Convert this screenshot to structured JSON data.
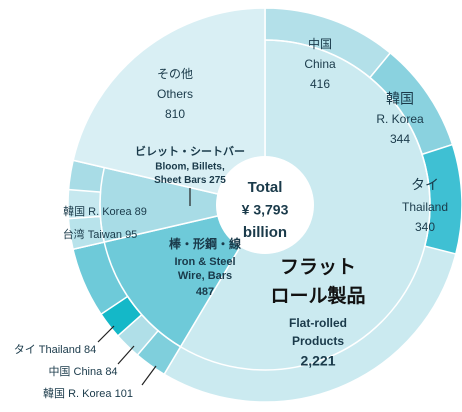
{
  "chart_data": {
    "type": "sunburst",
    "total_title": "Total",
    "total": {
      "value": 3793,
      "label": "¥ 3,793"
    },
    "unit": "billion",
    "segments": [
      {
        "name_ja": [
          "フラット",
          "ロール製品"
        ],
        "name_en": [
          "Flat-rolled",
          "Products"
        ],
        "value": 2221,
        "value_label": "2,221",
        "color": "#cbeaf0",
        "children": [
          {
            "name_ja": "中国",
            "name_en": "China",
            "value": 416,
            "color": "#b3e0e9"
          },
          {
            "name_ja": "韓国",
            "name_en": "R. Korea",
            "value": 344,
            "color": "#8ad2df"
          },
          {
            "name_ja": "タイ",
            "name_en": "Thailand",
            "value": 340,
            "color": "#3fc0d3"
          }
        ]
      },
      {
        "name_ja": "棒・形鋼・線",
        "name_en": [
          "Iron & Steel",
          "Wire, Bars"
        ],
        "value": 487,
        "color": "#6ecad9",
        "children": [
          {
            "name_ja": "韓国",
            "name_en": "R. Korea",
            "value": 101,
            "color": "#7fcfdc"
          },
          {
            "name_ja": "中国",
            "name_en": "China",
            "value": 84,
            "color": "#b0dfe8"
          },
          {
            "name_ja": "タイ",
            "name_en": "Thailand",
            "value": 84,
            "color": "#14b8c8"
          }
        ]
      },
      {
        "name_ja": "ビレット・シートバー",
        "name_en": [
          "Bloom, Billets,",
          "Sheet Bars"
        ],
        "value": 275,
        "color": "#a8dce6",
        "children": [
          {
            "name_ja": "台湾",
            "name_en": "Taiwan",
            "value": 95,
            "color": "#b8e3eb"
          },
          {
            "name_ja": "韓国",
            "name_en": "R. Korea",
            "value": 89,
            "color": "#c6e8ef"
          }
        ]
      },
      {
        "name_ja": "その他",
        "name_en": "Others",
        "value": 810,
        "color": "#d9eff4",
        "children": []
      }
    ]
  }
}
